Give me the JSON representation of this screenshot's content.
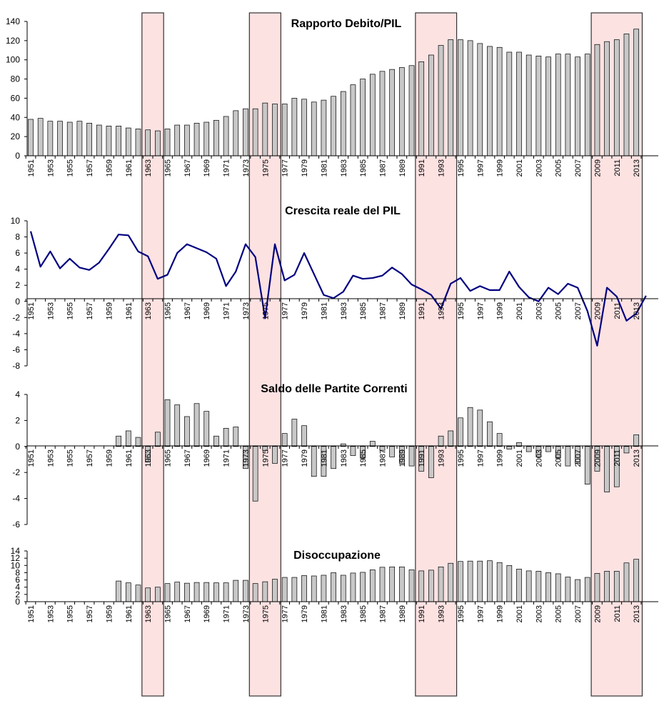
{
  "figure": {
    "shading_color": "#fde2e2",
    "shading_border": "#333333",
    "bar_fill": "#c8c8c8",
    "bar_stroke": "#000000",
    "line_color": "#000080",
    "shaded_periods": [
      [
        1963,
        1964
      ],
      [
        1974,
        1976
      ],
      [
        1991,
        1994
      ],
      [
        2009,
        2013
      ]
    ]
  },
  "chart_data": [
    {
      "type": "bar",
      "title": "Rapporto Debito/PIL",
      "ylim": [
        0,
        140
      ],
      "yticks": [
        0,
        20,
        40,
        60,
        80,
        100,
        120,
        140
      ],
      "xticklabels": [
        "1951",
        "1953",
        "1955",
        "1957",
        "1959",
        "1961",
        "1963",
        "1965",
        "1967",
        "1969",
        "1971",
        "1973",
        "1975",
        "1977",
        "1979",
        "1981",
        "1983",
        "1985",
        "1987",
        "1989",
        "1991",
        "1993",
        "1995",
        "1997",
        "1999",
        "2001",
        "2003",
        "2005",
        "2007",
        "2009",
        "2011",
        "2013"
      ],
      "x": [
        1951,
        1952,
        1953,
        1954,
        1955,
        1956,
        1957,
        1958,
        1959,
        1960,
        1961,
        1962,
        1963,
        1964,
        1965,
        1966,
        1967,
        1968,
        1969,
        1970,
        1971,
        1972,
        1973,
        1974,
        1975,
        1976,
        1977,
        1978,
        1979,
        1980,
        1981,
        1982,
        1983,
        1984,
        1985,
        1986,
        1987,
        1988,
        1989,
        1990,
        1991,
        1992,
        1993,
        1994,
        1995,
        1996,
        1997,
        1998,
        1999,
        2000,
        2001,
        2002,
        2003,
        2004,
        2005,
        2006,
        2007,
        2008,
        2009,
        2010,
        2011,
        2012,
        2013
      ],
      "values": [
        38,
        39,
        36,
        36,
        35,
        36,
        34,
        32,
        31,
        31,
        29,
        28,
        27,
        26,
        28,
        32,
        32,
        34,
        35,
        37,
        41,
        47,
        49,
        49,
        55,
        54,
        54,
        60,
        59,
        56,
        58,
        62,
        67,
        74,
        80,
        85,
        88,
        90,
        92,
        94,
        98,
        105,
        115,
        121,
        121,
        120,
        117,
        114,
        113,
        108,
        108,
        105,
        104,
        103,
        106,
        106,
        103,
        106,
        116,
        119,
        121,
        127,
        132
      ],
      "grid": false,
      "legend": "none"
    },
    {
      "type": "line",
      "title": "Crescita reale del PIL",
      "ylim": [
        -8,
        10
      ],
      "yticks": [
        -8,
        -6,
        -4,
        -2,
        0,
        2,
        4,
        6,
        8,
        10
      ],
      "xticklabels": [
        "1951",
        "1953",
        "1955",
        "1957",
        "1959",
        "1961",
        "1963",
        "1965",
        "1967",
        "1969",
        "1971",
        "1973",
        "1975",
        "1977",
        "1979",
        "1981",
        "1983",
        "1985",
        "1987",
        "1989",
        "1991",
        "1993",
        "1995",
        "1997",
        "1999",
        "2001",
        "2003",
        "2005",
        "2007",
        "2009",
        "2011",
        "2013"
      ],
      "x": [
        1951,
        1952,
        1953,
        1954,
        1955,
        1956,
        1957,
        1958,
        1959,
        1960,
        1961,
        1962,
        1963,
        1964,
        1965,
        1966,
        1967,
        1968,
        1969,
        1970,
        1971,
        1972,
        1973,
        1974,
        1975,
        1976,
        1977,
        1978,
        1979,
        1980,
        1981,
        1982,
        1983,
        1984,
        1985,
        1986,
        1987,
        1988,
        1989,
        1990,
        1991,
        1992,
        1993,
        1994,
        1995,
        1996,
        1997,
        1998,
        1999,
        2000,
        2001,
        2002,
        2003,
        2004,
        2005,
        2006,
        2007,
        2008,
        2009,
        2010,
        2011,
        2012,
        2013,
        2014
      ],
      "values": [
        8.7,
        4.3,
        6.2,
        4.1,
        5.3,
        4.2,
        3.9,
        4.8,
        6.5,
        8.3,
        8.2,
        6.2,
        5.6,
        2.8,
        3.3,
        6.0,
        7.1,
        6.6,
        6.1,
        5.3,
        1.9,
        3.7,
        7.1,
        5.5,
        -2.1,
        7.1,
        2.6,
        3.3,
        6.0,
        3.4,
        0.8,
        0.4,
        1.2,
        3.2,
        2.8,
        2.9,
        3.2,
        4.2,
        3.4,
        2.1,
        1.5,
        0.8,
        -0.9,
        2.2,
        2.9,
        1.3,
        1.9,
        1.4,
        1.4,
        3.7,
        1.8,
        0.5,
        0.0,
        1.7,
        0.9,
        2.2,
        1.7,
        -1.2,
        -5.5,
        1.7,
        0.6,
        -2.4,
        -1.5,
        0.7
      ],
      "grid": false,
      "legend": "none"
    },
    {
      "type": "bar",
      "title": "Saldo delle Partite Correnti",
      "ylim": [
        -6,
        4
      ],
      "yticks": [
        -6,
        -4,
        -2,
        0,
        2,
        4
      ],
      "xticklabels": [
        "1951",
        "1953",
        "1955",
        "1957",
        "1959",
        "1961",
        "1963",
        "1965",
        "1967",
        "1969",
        "1971",
        "1973",
        "1975",
        "1977",
        "1979",
        "1981",
        "1983",
        "1985",
        "1987",
        "1989",
        "1991",
        "1993",
        "1995",
        "1997",
        "1999",
        "2001",
        "2003",
        "2005",
        "2007",
        "2009",
        "2011",
        "2013"
      ],
      "x": [
        1960,
        1961,
        1962,
        1963,
        1964,
        1965,
        1966,
        1967,
        1968,
        1969,
        1970,
        1971,
        1972,
        1973,
        1974,
        1975,
        1976,
        1977,
        1978,
        1979,
        1980,
        1981,
        1982,
        1983,
        1984,
        1985,
        1986,
        1987,
        1988,
        1989,
        1990,
        1991,
        1992,
        1993,
        1994,
        1995,
        1996,
        1997,
        1998,
        1999,
        2000,
        2001,
        2002,
        2003,
        2004,
        2005,
        2006,
        2007,
        2008,
        2009,
        2010,
        2011,
        2012,
        2013
      ],
      "values": [
        0.8,
        1.2,
        0.7,
        -1.2,
        1.1,
        3.6,
        3.2,
        2.3,
        3.3,
        2.7,
        0.8,
        1.4,
        1.5,
        -1.7,
        -4.2,
        -0.3,
        -1.3,
        1.0,
        2.1,
        1.6,
        -2.3,
        -2.3,
        -1.7,
        0.2,
        -0.7,
        -0.9,
        0.4,
        -0.3,
        -0.8,
        -1.3,
        -1.5,
        -1.9,
        -2.4,
        0.8,
        1.2,
        2.2,
        3.0,
        2.8,
        1.9,
        1.0,
        -0.2,
        0.3,
        -0.4,
        -0.8,
        -0.4,
        -0.9,
        -1.5,
        -1.3,
        -2.9,
        -1.9,
        -3.5,
        -3.1,
        -0.5,
        0.9
      ],
      "grid": false,
      "legend": "none"
    },
    {
      "type": "bar",
      "title": "Disoccupazione",
      "ylim": [
        0,
        14
      ],
      "yticks": [
        0,
        2,
        4,
        6,
        8,
        10,
        12,
        14
      ],
      "xticklabels": [
        "1951",
        "1953",
        "1955",
        "1957",
        "1959",
        "1961",
        "1963",
        "1965",
        "1967",
        "1969",
        "1971",
        "1973",
        "1975",
        "1977",
        "1979",
        "1981",
        "1983",
        "1985",
        "1987",
        "1989",
        "1991",
        "1993",
        "1995",
        "1997",
        "1999",
        "2001",
        "2003",
        "2005",
        "2007",
        "2009",
        "2011",
        "2013"
      ],
      "x": [
        1960,
        1961,
        1962,
        1963,
        1964,
        1965,
        1966,
        1967,
        1968,
        1969,
        1970,
        1971,
        1972,
        1973,
        1974,
        1975,
        1976,
        1977,
        1978,
        1979,
        1980,
        1981,
        1982,
        1983,
        1984,
        1985,
        1986,
        1987,
        1988,
        1989,
        1990,
        1991,
        1992,
        1993,
        1994,
        1995,
        1996,
        1997,
        1998,
        1999,
        2000,
        2001,
        2002,
        2003,
        2004,
        2005,
        2006,
        2007,
        2008,
        2009,
        2010,
        2011,
        2012,
        2013
      ],
      "values": [
        5.7,
        5.2,
        4.6,
        3.8,
        4.0,
        5.0,
        5.4,
        5.1,
        5.3,
        5.3,
        5.2,
        5.2,
        5.9,
        5.9,
        5.0,
        5.5,
        6.2,
        6.7,
        6.7,
        7.2,
        7.1,
        7.3,
        8.0,
        7.3,
        7.9,
        8.1,
        8.8,
        9.5,
        9.6,
        9.6,
        8.8,
        8.5,
        8.7,
        9.6,
        10.6,
        11.1,
        11.2,
        11.2,
        11.3,
        10.8,
        10.0,
        9.0,
        8.5,
        8.4,
        8.0,
        7.7,
        6.8,
        6.1,
        6.7,
        7.8,
        8.4,
        8.4,
        10.7,
        11.7
      ],
      "grid": false,
      "legend": "none"
    }
  ]
}
